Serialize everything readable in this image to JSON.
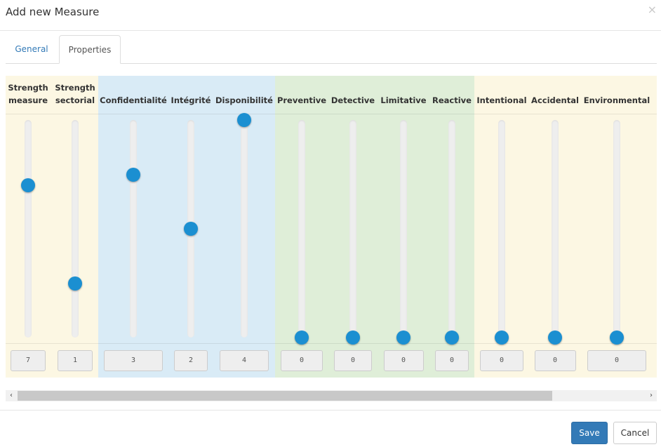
{
  "dialog": {
    "title": "Add new Measure",
    "close_glyph": "×"
  },
  "tabs": [
    {
      "label": "General",
      "active": false
    },
    {
      "label": "Properties",
      "active": true
    }
  ],
  "groups": {
    "strength": {
      "color": "#fcf7e3"
    },
    "cia": {
      "color": "#d9ebf6"
    },
    "type": {
      "color": "#dfeed8"
    },
    "threat": {
      "color": "#fcf7e3"
    }
  },
  "measures": [
    {
      "line1": "Strength",
      "line2": "measure",
      "value": "7",
      "level": 0.7
    },
    {
      "line1": "Strength",
      "line2": "sectorial",
      "value": "1",
      "level": 0.25
    },
    {
      "line1": "Confidentialité",
      "line2": "",
      "value": "3",
      "level": 0.75
    },
    {
      "line1": "Intégrité",
      "line2": "",
      "value": "2",
      "level": 0.5
    },
    {
      "line1": "Disponibilité",
      "line2": "",
      "value": "4",
      "level": 1.0
    },
    {
      "line1": "Preventive",
      "line2": "",
      "value": "0",
      "level": 0
    },
    {
      "line1": "Detective",
      "line2": "",
      "value": "0",
      "level": 0
    },
    {
      "line1": "Limitative",
      "line2": "",
      "value": "0",
      "level": 0
    },
    {
      "line1": "Reactive",
      "line2": "",
      "value": "0",
      "level": 0
    },
    {
      "line1": "Intentional",
      "line2": "",
      "value": "0",
      "level": 0
    },
    {
      "line1": "Accidental",
      "line2": "",
      "value": "0",
      "level": 0
    },
    {
      "line1": "Environmental",
      "line2": "",
      "value": "0",
      "level": 0
    }
  ],
  "scrollbar": {
    "left_arrow": "‹",
    "right_arrow": "›"
  },
  "footer": {
    "save_label": "Save",
    "cancel_label": "Cancel"
  },
  "colors": {
    "accent": "#337ab7",
    "handle": "#1b8fd1"
  }
}
